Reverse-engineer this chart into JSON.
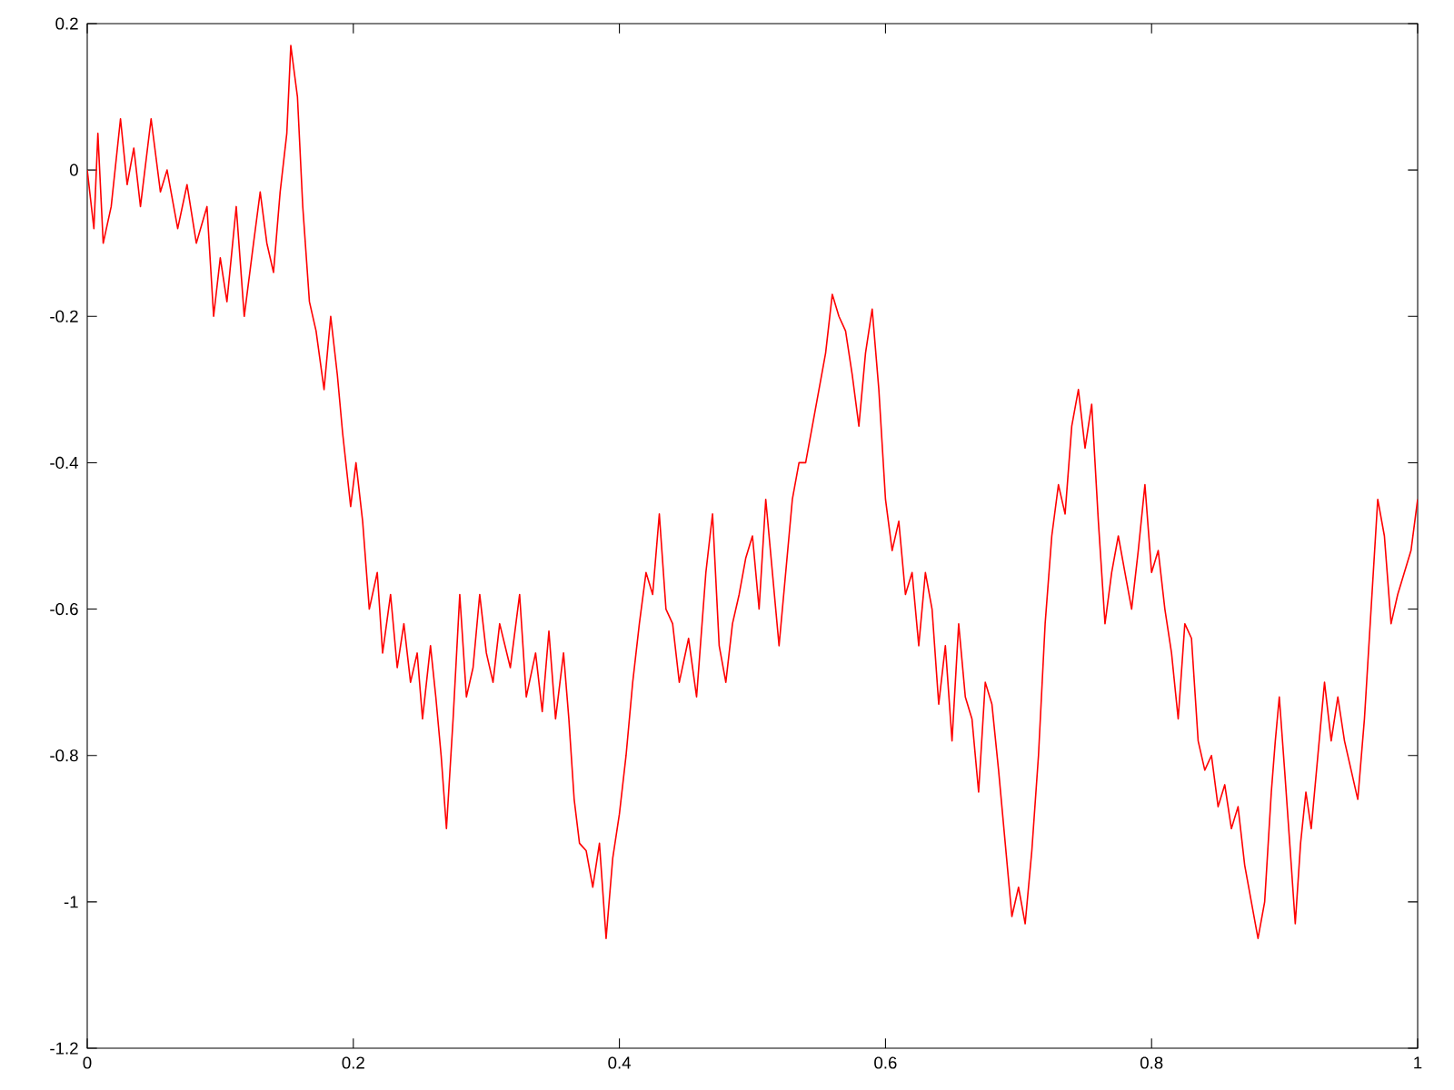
{
  "chart_data": {
    "type": "line",
    "xlim": [
      0,
      1
    ],
    "ylim": [
      -1.2,
      0.2
    ],
    "xticks": [
      0,
      0.2,
      0.4,
      0.6,
      0.8,
      1
    ],
    "yticks": [
      -1.2,
      -1,
      -0.8,
      -0.6,
      -0.4,
      -0.2,
      0,
      0.2
    ],
    "line_style": "solid",
    "marker": "none",
    "series": [
      {
        "color": "#ff0000",
        "x": [
          0,
          0.005,
          0.008,
          0.012,
          0.018,
          0.025,
          0.03,
          0.035,
          0.04,
          0.048,
          0.055,
          0.06,
          0.068,
          0.075,
          0.082,
          0.09,
          0.095,
          0.1,
          0.105,
          0.112,
          0.118,
          0.125,
          0.13,
          0.135,
          0.14,
          0.145,
          0.15,
          0.153,
          0.158,
          0.162,
          0.167,
          0.172,
          0.178,
          0.183,
          0.188,
          0.192,
          0.198,
          0.202,
          0.207,
          0.212,
          0.218,
          0.222,
          0.228,
          0.233,
          0.238,
          0.243,
          0.248,
          0.252,
          0.258,
          0.262,
          0.266,
          0.27,
          0.275,
          0.28,
          0.285,
          0.29,
          0.295,
          0.3,
          0.305,
          0.31,
          0.318,
          0.325,
          0.33,
          0.337,
          0.342,
          0.347,
          0.352,
          0.358,
          0.362,
          0.366,
          0.37,
          0.375,
          0.38,
          0.385,
          0.39,
          0.395,
          0.4,
          0.405,
          0.41,
          0.415,
          0.42,
          0.425,
          0.43,
          0.435,
          0.44,
          0.445,
          0.452,
          0.458,
          0.465,
          0.47,
          0.475,
          0.48,
          0.485,
          0.49,
          0.495,
          0.5,
          0.505,
          0.51,
          0.515,
          0.52,
          0.525,
          0.53,
          0.535,
          0.54,
          0.545,
          0.55,
          0.555,
          0.56,
          0.565,
          0.57,
          0.575,
          0.58,
          0.585,
          0.59,
          0.595,
          0.6,
          0.605,
          0.61,
          0.615,
          0.62,
          0.625,
          0.63,
          0.635,
          0.64,
          0.645,
          0.65,
          0.655,
          0.66,
          0.665,
          0.67,
          0.675,
          0.68,
          0.685,
          0.69,
          0.695,
          0.7,
          0.705,
          0.71,
          0.715,
          0.72,
          0.725,
          0.73,
          0.735,
          0.74,
          0.745,
          0.75,
          0.755,
          0.76,
          0.765,
          0.77,
          0.775,
          0.78,
          0.785,
          0.79,
          0.795,
          0.8,
          0.805,
          0.81,
          0.815,
          0.82,
          0.825,
          0.83,
          0.835,
          0.84,
          0.845,
          0.85,
          0.855,
          0.86,
          0.865,
          0.87,
          0.875,
          0.88,
          0.885,
          0.89,
          0.893,
          0.896,
          0.9,
          0.905,
          0.908,
          0.912,
          0.916,
          0.92,
          0.925,
          0.93,
          0.935,
          0.94,
          0.945,
          0.95,
          0.955,
          0.96,
          0.965,
          0.97,
          0.975,
          0.98,
          0.985,
          0.99,
          0.995,
          1
        ],
        "values": [
          0,
          -0.08,
          0.05,
          -0.1,
          -0.05,
          0.07,
          -0.02,
          0.03,
          -0.05,
          0.07,
          -0.03,
          0,
          -0.08,
          -0.02,
          -0.1,
          -0.05,
          -0.2,
          -0.12,
          -0.18,
          -0.05,
          -0.2,
          -0.1,
          -0.03,
          -0.1,
          -0.14,
          -0.03,
          0.05,
          0.17,
          0.1,
          -0.05,
          -0.18,
          -0.22,
          -0.3,
          -0.2,
          -0.28,
          -0.36,
          -0.46,
          -0.4,
          -0.48,
          -0.6,
          -0.55,
          -0.66,
          -0.58,
          -0.68,
          -0.62,
          -0.7,
          -0.66,
          -0.75,
          -0.65,
          -0.72,
          -0.8,
          -0.9,
          -0.75,
          -0.58,
          -0.72,
          -0.68,
          -0.58,
          -0.66,
          -0.7,
          -0.62,
          -0.68,
          -0.58,
          -0.72,
          -0.66,
          -0.74,
          -0.63,
          -0.75,
          -0.66,
          -0.75,
          -0.86,
          -0.92,
          -0.93,
          -0.98,
          -0.92,
          -1.05,
          -0.94,
          -0.88,
          -0.8,
          -0.7,
          -0.62,
          -0.55,
          -0.58,
          -0.47,
          -0.6,
          -0.62,
          -0.7,
          -0.64,
          -0.72,
          -0.55,
          -0.47,
          -0.65,
          -0.7,
          -0.62,
          -0.58,
          -0.53,
          -0.5,
          -0.6,
          -0.45,
          -0.55,
          -0.65,
          -0.55,
          -0.45,
          -0.4,
          -0.4,
          -0.35,
          -0.3,
          -0.25,
          -0.17,
          -0.2,
          -0.22,
          -0.28,
          -0.35,
          -0.25,
          -0.19,
          -0.3,
          -0.45,
          -0.52,
          -0.48,
          -0.58,
          -0.55,
          -0.65,
          -0.55,
          -0.6,
          -0.73,
          -0.65,
          -0.78,
          -0.62,
          -0.72,
          -0.75,
          -0.85,
          -0.7,
          -0.73,
          -0.82,
          -0.92,
          -1.02,
          -0.98,
          -1.03,
          -0.93,
          -0.8,
          -0.62,
          -0.5,
          -0.43,
          -0.47,
          -0.35,
          -0.3,
          -0.38,
          -0.32,
          -0.48,
          -0.62,
          -0.55,
          -0.5,
          -0.55,
          -0.6,
          -0.52,
          -0.43,
          -0.55,
          -0.52,
          -0.6,
          -0.66,
          -0.75,
          -0.62,
          -0.64,
          -0.78,
          -0.82,
          -0.8,
          -0.87,
          -0.84,
          -0.9,
          -0.87,
          -0.95,
          -1,
          -1.05,
          -1,
          -0.85,
          -0.78,
          -0.72,
          -0.82,
          -0.95,
          -1.03,
          -0.92,
          -0.85,
          -0.9,
          -0.8,
          -0.7,
          -0.78,
          -0.72,
          -0.78,
          -0.82,
          -0.86,
          -0.75,
          -0.6,
          -0.45,
          -0.5,
          -0.62,
          -0.58,
          -0.55,
          -0.52,
          -0.45
        ]
      }
    ]
  }
}
